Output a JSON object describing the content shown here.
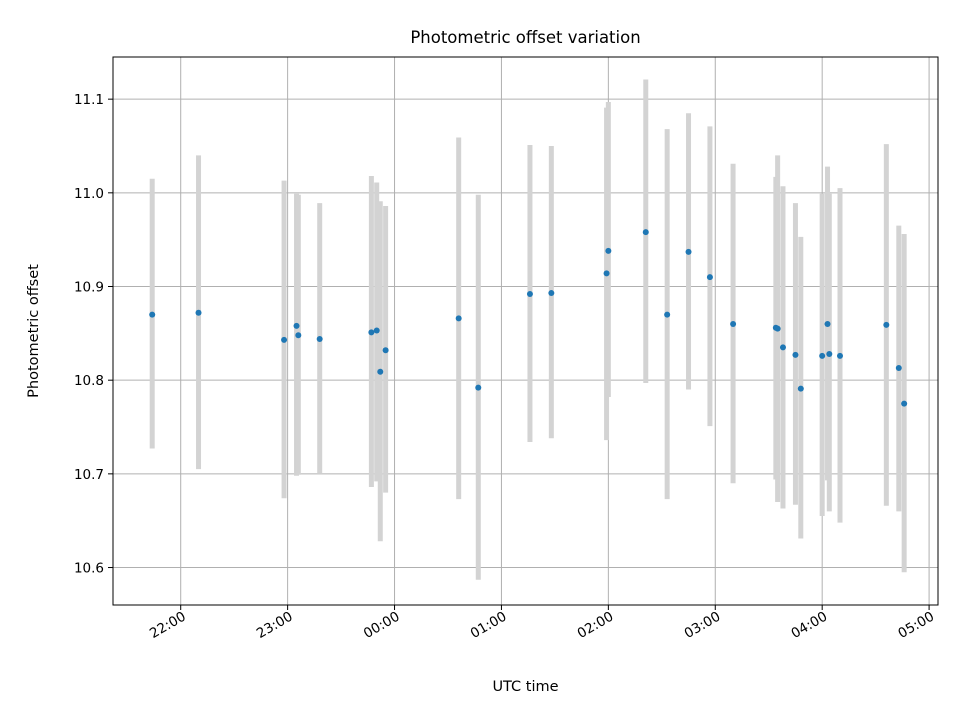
{
  "chart_data": {
    "type": "scatter",
    "title": "Photometric offset variation",
    "xlabel": "UTC time",
    "ylabel": "Photometric offset",
    "x_type": "time",
    "x_reference_time": "21:00",
    "x_ticks": [
      "22:00",
      "23:00",
      "00:00",
      "01:00",
      "02:00",
      "03:00",
      "04:00",
      "05:00"
    ],
    "xlim": [
      "21:22",
      "05:05"
    ],
    "y_ticks": [
      10.6,
      10.7,
      10.8,
      10.9,
      11.0,
      11.1
    ],
    "ylim": [
      10.56,
      11.145
    ],
    "grid": true,
    "series": [
      {
        "marker_color": "#1f77b4",
        "errorbar_color": "#d3d3d3",
        "points": [
          {
            "t": "21:44",
            "y": 10.87,
            "lo": 10.727,
            "hi": 11.015
          },
          {
            "t": "22:10",
            "y": 10.872,
            "lo": 10.705,
            "hi": 11.04
          },
          {
            "t": "22:58",
            "y": 10.843,
            "lo": 10.674,
            "hi": 11.013
          },
          {
            "t": "23:05",
            "y": 10.858,
            "lo": 10.698,
            "hi": 10.999
          },
          {
            "t": "23:06",
            "y": 10.848,
            "lo": 10.699,
            "hi": 10.998
          },
          {
            "t": "23:18",
            "y": 10.844,
            "lo": 10.7,
            "hi": 10.989
          },
          {
            "t": "23:47",
            "y": 10.851,
            "lo": 10.686,
            "hi": 11.018
          },
          {
            "t": "23:50",
            "y": 10.853,
            "lo": 10.692,
            "hi": 11.011
          },
          {
            "t": "23:52",
            "y": 10.809,
            "lo": 10.628,
            "hi": 10.991
          },
          {
            "t": "23:55",
            "y": 10.832,
            "lo": 10.68,
            "hi": 10.986
          },
          {
            "t": "00:36",
            "y": 10.866,
            "lo": 10.673,
            "hi": 11.059
          },
          {
            "t": "00:47",
            "y": 10.792,
            "lo": 10.587,
            "hi": 10.998
          },
          {
            "t": "01:16",
            "y": 10.892,
            "lo": 10.734,
            "hi": 11.051
          },
          {
            "t": "01:28",
            "y": 10.893,
            "lo": 10.738,
            "hi": 11.05
          },
          {
            "t": "01:59",
            "y": 10.914,
            "lo": 10.736,
            "hi": 11.091
          },
          {
            "t": "02:00",
            "y": 10.938,
            "lo": 10.782,
            "hi": 11.097
          },
          {
            "t": "02:21",
            "y": 10.958,
            "lo": 10.797,
            "hi": 11.121
          },
          {
            "t": "02:33",
            "y": 10.87,
            "lo": 10.673,
            "hi": 11.068
          },
          {
            "t": "02:45",
            "y": 10.937,
            "lo": 10.79,
            "hi": 11.085
          },
          {
            "t": "02:57",
            "y": 10.91,
            "lo": 10.751,
            "hi": 11.071
          },
          {
            "t": "03:10",
            "y": 10.86,
            "lo": 10.69,
            "hi": 11.031
          },
          {
            "t": "03:34",
            "y": 10.856,
            "lo": 10.694,
            "hi": 11.017
          },
          {
            "t": "03:35",
            "y": 10.855,
            "lo": 10.67,
            "hi": 11.04
          },
          {
            "t": "03:38",
            "y": 10.835,
            "lo": 10.663,
            "hi": 11.007
          },
          {
            "t": "03:45",
            "y": 10.827,
            "lo": 10.667,
            "hi": 10.989
          },
          {
            "t": "03:48",
            "y": 10.791,
            "lo": 10.631,
            "hi": 10.953
          },
          {
            "t": "04:00",
            "y": 10.826,
            "lo": 10.655,
            "hi": 10.999
          },
          {
            "t": "04:03",
            "y": 10.86,
            "lo": 10.693,
            "hi": 11.028
          },
          {
            "t": "04:04",
            "y": 10.828,
            "lo": 10.66,
            "hi": 10.999
          },
          {
            "t": "04:10",
            "y": 10.826,
            "lo": 10.648,
            "hi": 11.005
          },
          {
            "t": "04:36",
            "y": 10.859,
            "lo": 10.666,
            "hi": 11.052
          },
          {
            "t": "04:43",
            "y": 10.813,
            "lo": 10.66,
            "hi": 10.965
          },
          {
            "t": "04:46",
            "y": 10.775,
            "lo": 10.595,
            "hi": 10.956
          }
        ]
      }
    ]
  }
}
